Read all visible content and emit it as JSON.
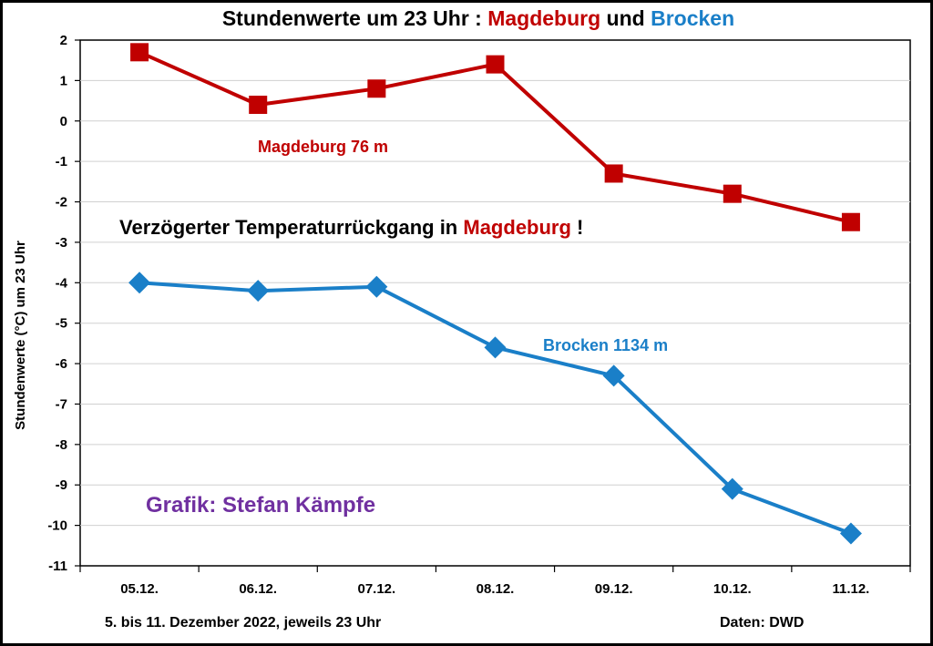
{
  "chart_data": {
    "type": "line",
    "title": {
      "parts": [
        {
          "text": "Stundenwerte  um 23 Uhr : ",
          "color": "#000000"
        },
        {
          "text": "Magdeburg",
          "color": "#c00000"
        },
        {
          "text": " und ",
          "color": "#000000"
        },
        {
          "text": "Brocken",
          "color": "#1a7fc8"
        }
      ]
    },
    "ylabel": "Stundenwerte (°C) um 23 Uhr",
    "xlabel": "5. bis 11. Dezember 2022, jeweils 23 Uhr",
    "source": "Daten: DWD",
    "categories": [
      "05.12.",
      "06.12.",
      "07.12.",
      "08.12.",
      "09.12.",
      "10.12.",
      "11.12."
    ],
    "ylim": [
      -11,
      2
    ],
    "yticks": [
      2,
      1,
      0,
      -1,
      -2,
      -3,
      -4,
      -5,
      -6,
      -7,
      -8,
      -9,
      -10,
      -11
    ],
    "grid": true,
    "series": [
      {
        "name": "Magdeburg 76 m",
        "color": "#c00000",
        "marker": "square",
        "values": [
          1.7,
          0.4,
          0.8,
          1.4,
          -1.3,
          -1.8,
          -2.5
        ]
      },
      {
        "name": "Brocken 1134 m",
        "color": "#1a7fc8",
        "marker": "diamond",
        "values": [
          -4.0,
          -4.2,
          -4.1,
          -5.6,
          -6.3,
          -9.1,
          -10.2
        ]
      }
    ],
    "annotations": {
      "headline": {
        "parts": [
          {
            "text": "Verzögerter Temperaturrückgang  in ",
            "color": "#000000"
          },
          {
            "text": "Magdeburg",
            "color": "#c00000"
          },
          {
            "text": " !",
            "color": "#000000"
          }
        ]
      },
      "credit": {
        "text": "Grafik: Stefan Kämpfe",
        "color": "#7030a0"
      }
    }
  }
}
